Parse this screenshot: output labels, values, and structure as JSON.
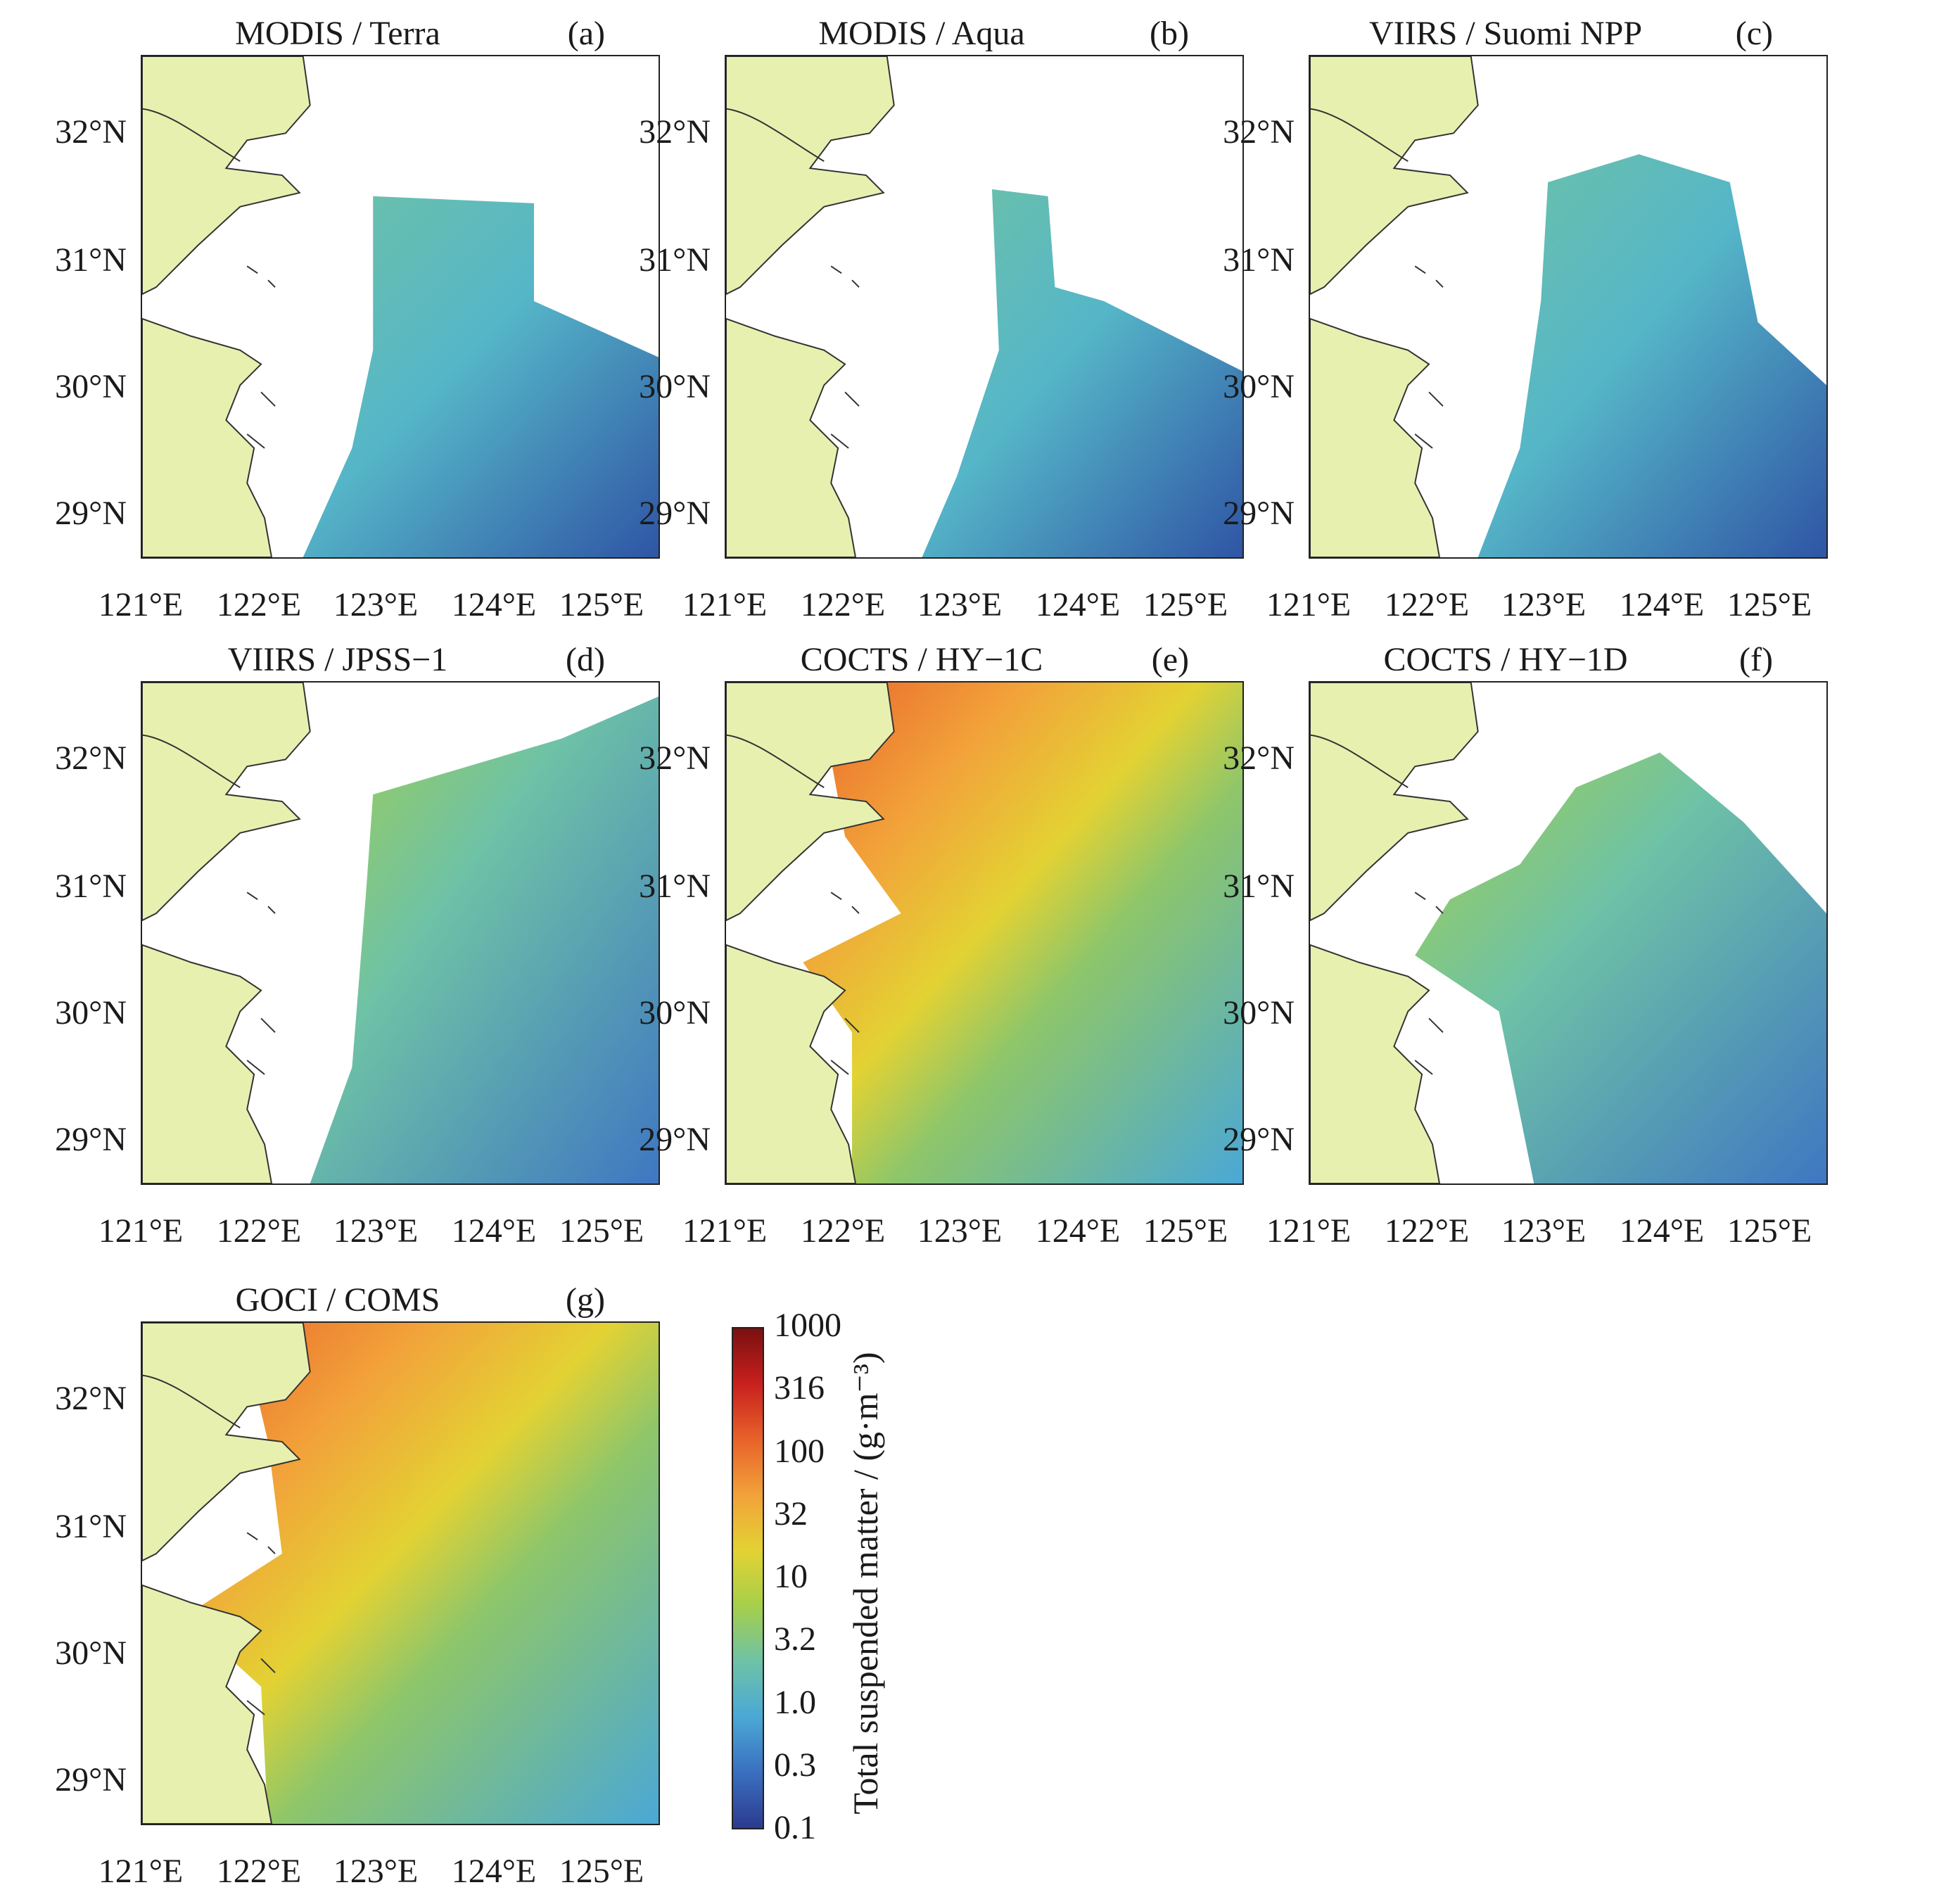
{
  "panels": [
    {
      "title": "MODIS / Terra",
      "label": "(a)"
    },
    {
      "title": "MODIS / Aqua",
      "label": "(b)"
    },
    {
      "title": "VIIRS / Suomi NPP",
      "label": "(c)"
    },
    {
      "title": "VIIRS / JPSS−1",
      "label": "(d)"
    },
    {
      "title": "COCTS / HY−1C",
      "label": "(e)"
    },
    {
      "title": "COCTS / HY−1D",
      "label": "(f)"
    },
    {
      "title": "GOCI / COMS",
      "label": "(g)"
    }
  ],
  "axes": {
    "lat_ticks": [
      "32°N",
      "31°N",
      "30°N",
      "29°N"
    ],
    "lon_ticks": [
      "121°E",
      "122°E",
      "123°E",
      "124°E",
      "125°E"
    ]
  },
  "colorbar": {
    "title": "Total suspended matter / (g·m⁻³)",
    "ticks": [
      "1000",
      "316",
      "100",
      "32",
      "10",
      "3.2",
      "1.0",
      "0.3",
      "0.1"
    ],
    "scale": "log",
    "range": [
      0.1,
      1000
    ],
    "colors": [
      "#2c3b8f",
      "#3a6fc0",
      "#4aa8d6",
      "#6ec2a6",
      "#a6cf4a",
      "#e3d233",
      "#f2a23a",
      "#e8622a",
      "#c8201e",
      "#7a1010"
    ]
  },
  "styles": {
    "land_color": "#e8f0b0",
    "coast_color": "#333333"
  }
}
